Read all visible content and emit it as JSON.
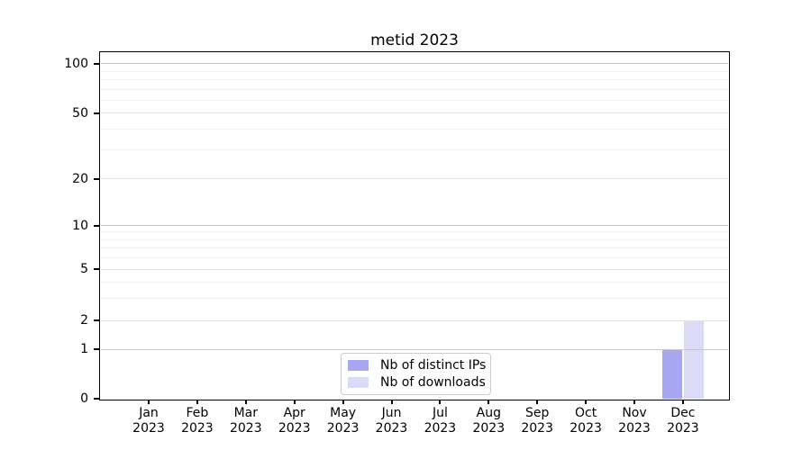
{
  "chart_data": {
    "type": "bar",
    "title": "metid 2023",
    "xlabel": "",
    "ylabel": "",
    "categories": [
      "Jan",
      "Feb",
      "Mar",
      "Apr",
      "May",
      "Jun",
      "Jul",
      "Aug",
      "Sep",
      "Oct",
      "Nov",
      "Dec"
    ],
    "year_label": "2023",
    "series": [
      {
        "name": "Nb of distinct IPs",
        "color": "#a8a8f2",
        "values": [
          0,
          0,
          0,
          0,
          0,
          0,
          0,
          0,
          0,
          0,
          0,
          1
        ]
      },
      {
        "name": "Nb of downloads",
        "color": "#dbdbf7",
        "values": [
          0,
          0,
          0,
          0,
          0,
          0,
          0,
          0,
          0,
          0,
          0,
          2
        ]
      }
    ],
    "yaxis": {
      "scale": "symlog",
      "ticks": [
        0,
        1,
        2,
        5,
        10,
        20,
        50,
        100
      ],
      "minor_ticks": [
        3,
        4,
        6,
        7,
        8,
        9,
        30,
        40,
        60,
        70,
        80,
        90
      ],
      "range": [
        0,
        120
      ]
    },
    "grid": "horizontal",
    "legend_position": "inside-bottom-center",
    "colors": {
      "grid_major_strong": "#c6c6c6",
      "grid_major_light": "#e2e2e2",
      "grid_minor": "#f0f0f0",
      "axis": "#000000",
      "legend_border": "#cccccc"
    }
  }
}
